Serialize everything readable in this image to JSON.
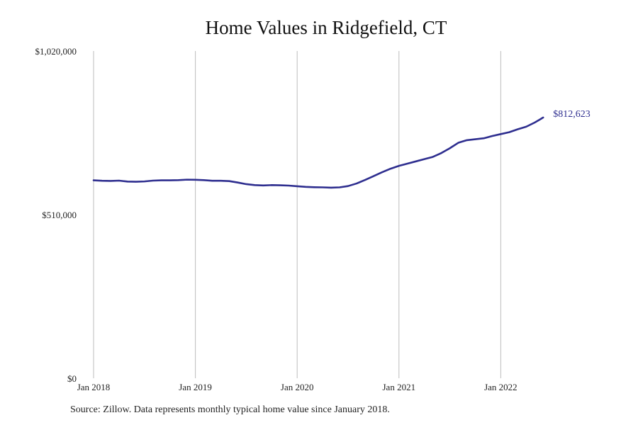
{
  "chart_data": {
    "type": "line",
    "title": "Home Values in Ridgefield, CT",
    "xlabel": "",
    "ylabel": "",
    "source": "Source: Zillow. Data represents monthly typical home value since January 2018.",
    "x_ticks": [
      {
        "label": "Jan 2018",
        "date": "2018-01"
      },
      {
        "label": "Jan 2019",
        "date": "2019-01"
      },
      {
        "label": "Jan 2020",
        "date": "2020-01"
      },
      {
        "label": "Jan 2021",
        "date": "2021-01"
      },
      {
        "label": "Jan 2022",
        "date": "2022-01"
      }
    ],
    "y_ticks": [
      {
        "label": "$0",
        "value": 0
      },
      {
        "label": "$510,000",
        "value": 510000
      },
      {
        "label": "$1,020,000",
        "value": 1020000
      }
    ],
    "xlim": [
      "2018-01",
      "2023-01"
    ],
    "ylim": [
      0,
      1020000
    ],
    "grid": {
      "x": true,
      "y": false
    },
    "legend": "none",
    "colors": {
      "line": "#2e2e8f",
      "grid": "#bdbdbd",
      "end_label": "#2e2e8f"
    },
    "end_label": "$812,623",
    "series": [
      {
        "x": [
          "2018-01",
          "2018-02",
          "2018-03",
          "2018-04",
          "2018-05",
          "2018-06",
          "2018-07",
          "2018-08",
          "2018-09",
          "2018-10",
          "2018-11",
          "2018-12",
          "2019-01",
          "2019-02",
          "2019-03",
          "2019-04",
          "2019-05",
          "2019-06",
          "2019-07",
          "2019-08",
          "2019-09",
          "2019-10",
          "2019-11",
          "2019-12",
          "2020-01",
          "2020-02",
          "2020-03",
          "2020-04",
          "2020-05",
          "2020-06",
          "2020-07",
          "2020-08",
          "2020-09",
          "2020-10",
          "2020-11",
          "2020-12",
          "2021-01",
          "2021-02",
          "2021-03",
          "2021-04",
          "2021-05",
          "2021-06",
          "2021-07",
          "2021-08",
          "2021-09",
          "2021-10",
          "2021-11",
          "2021-12",
          "2022-01",
          "2022-02",
          "2022-03",
          "2022-04",
          "2022-05",
          "2022-06"
        ],
        "y": [
          617000,
          615500,
          615000,
          616000,
          613000,
          612500,
          613500,
          616000,
          617000,
          617000,
          617500,
          619000,
          618500,
          617500,
          615500,
          615500,
          614500,
          610000,
          605000,
          602000,
          601000,
          602000,
          601500,
          600500,
          598500,
          596500,
          595500,
          595000,
          594000,
          595000,
          599000,
          607000,
          618000,
          630000,
          642000,
          653000,
          662000,
          669000,
          676000,
          683000,
          690000,
          702000,
          717000,
          734000,
          742000,
          745000,
          748000,
          755000,
          761000,
          767000,
          776000,
          784000,
          797000,
          812623
        ]
      }
    ]
  }
}
